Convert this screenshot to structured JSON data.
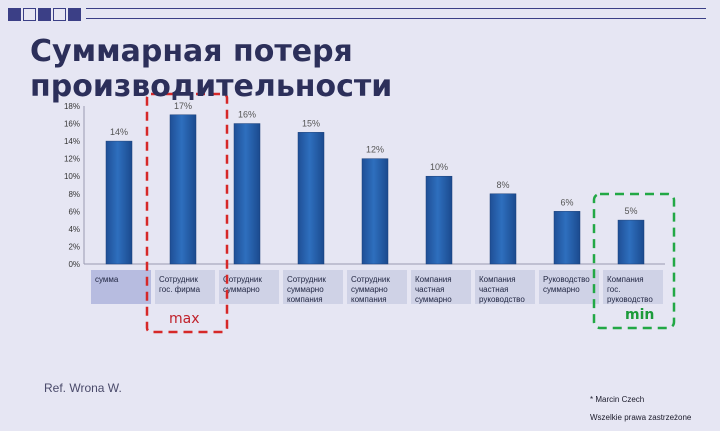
{
  "slide": {
    "title": "Суммарная потеря производительности",
    "max_label": "max",
    "min_label": "min",
    "reference": "Ref. Wrona W.",
    "copyright_line1": "* Marcin Czech",
    "copyright_line2": "Wszelkie prawa zastrzeżone",
    "colors": {
      "background": "#e6e6f3",
      "bar": "#2e6fbe",
      "max_frame": "#d62828",
      "min_frame": "#22a845",
      "header_squares": "#3b3f86"
    }
  },
  "chart_data": {
    "type": "bar",
    "categories": [
      "сумма",
      "Сотрудник гос. фирма",
      "Сотрудник суммарно",
      "Сотрудник суммарно компания",
      "Сотрудник суммарно компания",
      "Компания частная суммарно",
      "Компания частная руководство",
      "Руководство суммарно",
      "Компания гос. руководство"
    ],
    "values": [
      14,
      17,
      16,
      15,
      12,
      10,
      8,
      6,
      5
    ],
    "data_labels": [
      "14%",
      "17%",
      "16%",
      "15%",
      "12%",
      "10%",
      "8%",
      "6%",
      "5%"
    ],
    "y_ticks": [
      "0%",
      "2%",
      "4%",
      "6%",
      "8%",
      "10%",
      "12%",
      "14%",
      "16%",
      "18%"
    ],
    "ylim": [
      0,
      18
    ],
    "grid": false,
    "legend": "none"
  }
}
